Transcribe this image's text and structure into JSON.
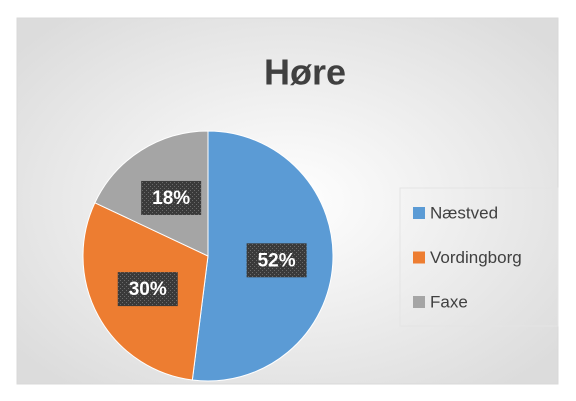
{
  "chart_data": {
    "type": "pie",
    "title": "Høre",
    "categories": [
      "Næstved",
      "Vordingborg",
      "Faxe"
    ],
    "values": [
      52,
      30,
      18
    ],
    "value_labels": [
      "52%",
      "30%",
      "18%"
    ],
    "colors": [
      "#5b9bd5",
      "#ed7d31",
      "#a5a5a5"
    ],
    "legend": "right"
  }
}
